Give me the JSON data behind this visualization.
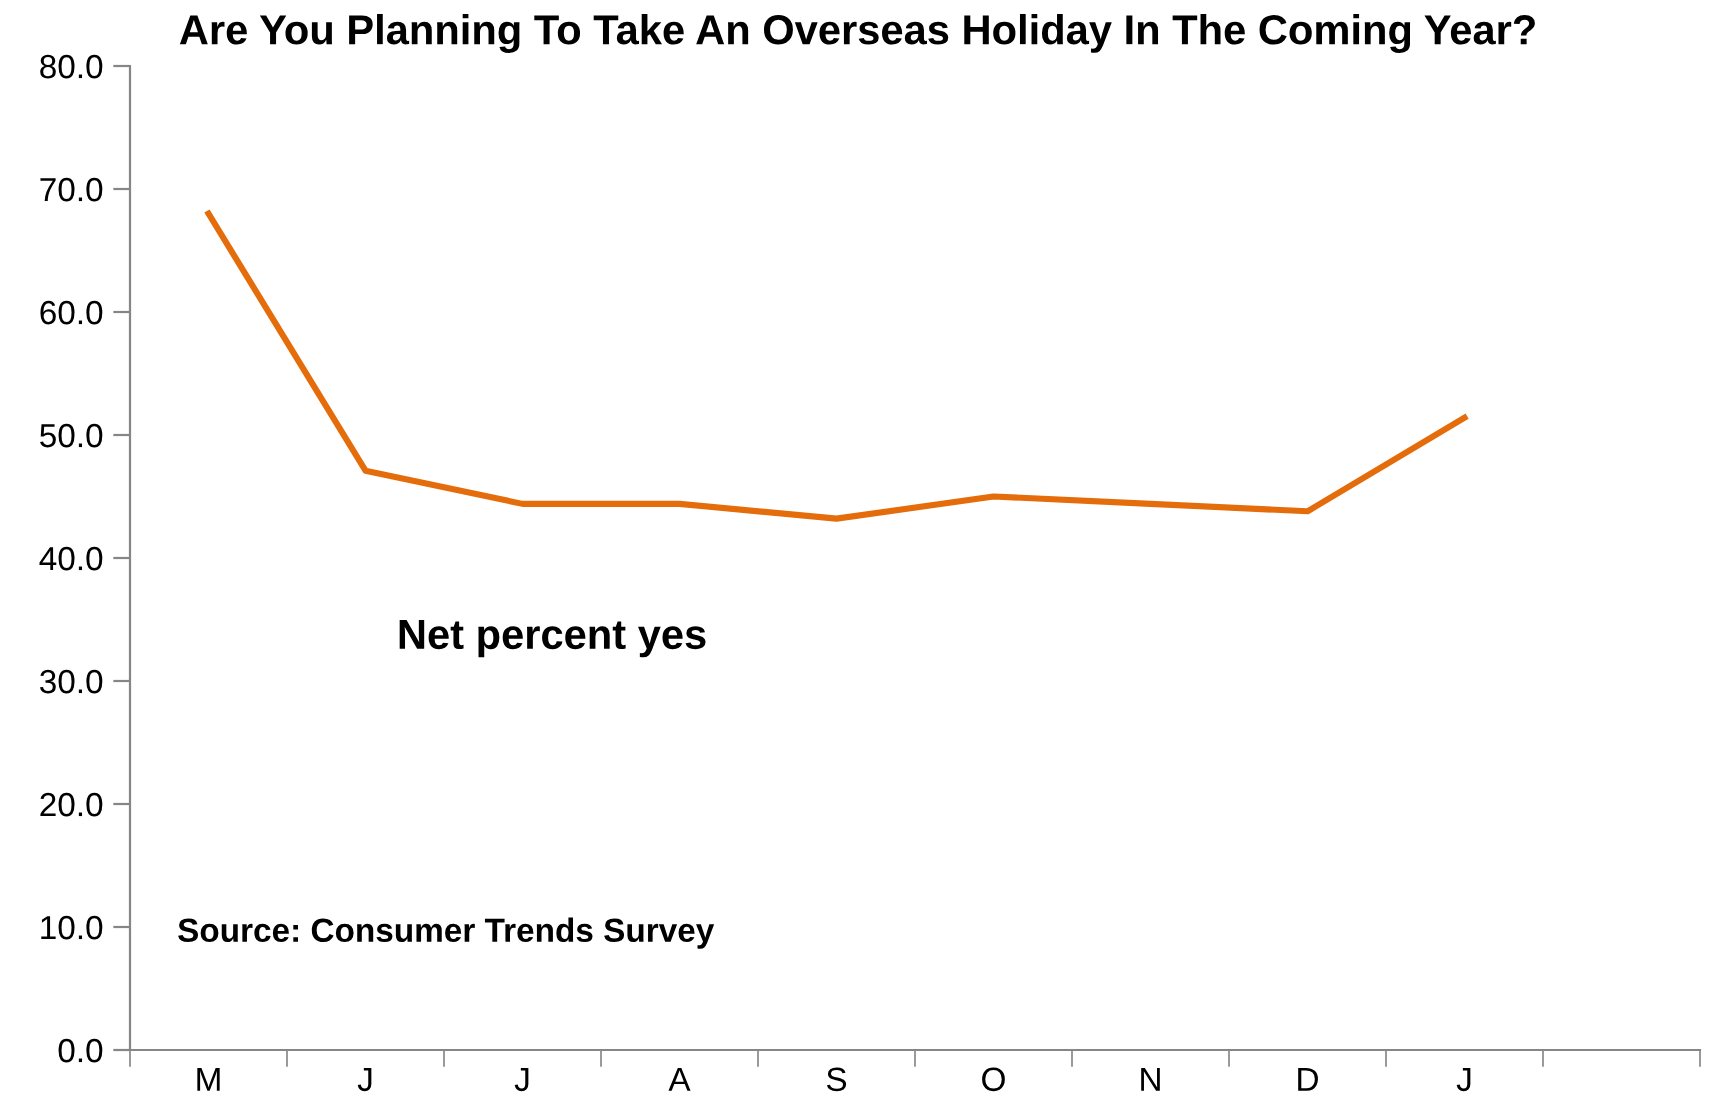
{
  "chart_data": {
    "type": "line",
    "title": "Are You Planning To Take An Overseas Holiday In The Coming Year?",
    "categories": [
      "M",
      "J",
      "J",
      "A",
      "S",
      "O",
      "N",
      "D",
      "J",
      null
    ],
    "series": [
      {
        "color": "#e46c0a",
        "values": [
          68.0,
          47.1,
          44.4,
          44.4,
          43.2,
          45.0,
          44.4,
          43.8,
          51.4,
          null
        ]
      }
    ],
    "ylim": [
      0,
      80
    ],
    "yticks": [
      {
        "value": 0,
        "label": "0.0"
      },
      {
        "value": 10,
        "label": "10.0"
      },
      {
        "value": 20,
        "label": "20.0"
      },
      {
        "value": 30,
        "label": "30.0"
      },
      {
        "value": 40,
        "label": "40.0"
      },
      {
        "value": 50,
        "label": "50.0"
      },
      {
        "value": 60,
        "label": "60.0"
      },
      {
        "value": 70,
        "label": "70.0"
      },
      {
        "value": 80,
        "label": "80.0"
      }
    ],
    "annotations": [
      "Net percent yes",
      "Source: Consumer Trends Survey"
    ],
    "grid": false,
    "marker": "none",
    "line_style": "solid"
  }
}
